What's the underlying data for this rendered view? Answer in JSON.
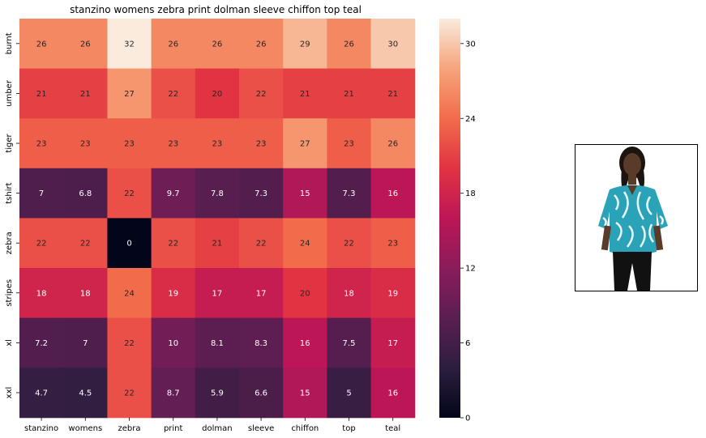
{
  "chart_data": {
    "type": "heatmap",
    "title": "stanzino womens zebra print dolman sleeve chiffon top teal",
    "x_labels": [
      "stanzino",
      "womens",
      "zebra",
      "print",
      "dolman",
      "sleeve",
      "chiffon",
      "top",
      "teal"
    ],
    "y_labels": [
      "burnt",
      "umber",
      "tiger",
      "tshirt",
      "zebra",
      "stripes",
      "xl",
      "xxl"
    ],
    "values": [
      [
        26,
        26,
        32,
        26,
        26,
        26,
        29,
        26,
        30
      ],
      [
        21,
        21,
        27,
        22,
        20,
        22,
        21,
        21,
        21
      ],
      [
        23,
        23,
        23,
        23,
        23,
        23,
        27,
        23,
        26
      ],
      [
        7,
        6.8,
        22,
        9.7,
        7.8,
        7.3,
        15,
        7.3,
        16
      ],
      [
        22,
        22,
        0,
        22,
        21,
        22,
        24,
        22,
        23
      ],
      [
        18,
        18,
        24,
        19,
        17,
        17,
        20,
        18,
        19
      ],
      [
        7.2,
        7,
        22,
        10,
        8.1,
        8.3,
        16,
        7.5,
        17
      ],
      [
        4.7,
        4.5,
        22,
        8.7,
        5.9,
        6.6,
        15,
        5,
        16
      ]
    ],
    "colorbar": {
      "min": 0,
      "max": 32,
      "ticks": [
        0,
        6,
        12,
        18,
        24,
        30
      ]
    },
    "colormap": "rocket",
    "grid": false,
    "legend": "colorbar-right"
  },
  "product_image": {
    "subject": "model wearing teal zebra print dolman sleeve chiffon top"
  }
}
